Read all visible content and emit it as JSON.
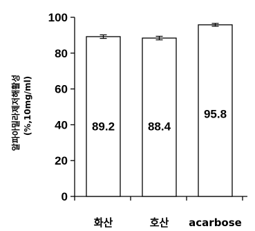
{
  "chart_data": {
    "type": "bar",
    "categories": [
      "화산",
      "호산",
      "acarbose"
    ],
    "values": [
      89.2,
      88.4,
      95.8
    ],
    "errors": [
      1.0,
      1.0,
      0.8
    ],
    "data_labels": [
      "89.2",
      "88.4",
      "95.8"
    ],
    "ylabel_lines": [
      "알파아밀라제저해활성",
      "(%,10mg/ml)"
    ],
    "ylim": [
      0,
      100
    ],
    "yticks": [
      0,
      20,
      40,
      60,
      80,
      100
    ],
    "grid": false,
    "legend": "none",
    "bar_fill": "#ffffff",
    "bar_stroke": "#000000"
  }
}
